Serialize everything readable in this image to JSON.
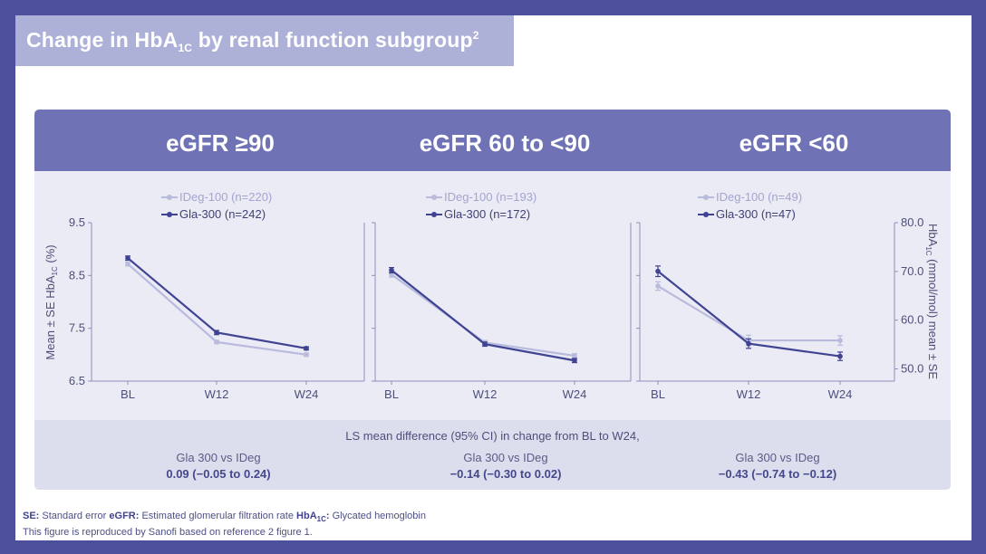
{
  "title": {
    "main_before": "Change in HbA",
    "sub": "1C",
    "main_after": " by renal function subgroup",
    "sup": "2"
  },
  "panels": [
    {
      "header": "eGFR ≥90",
      "legend": [
        "IDeg-100 (n=220)",
        "Gla-300 (n=242)"
      ],
      "diff_label": "Gla 300 vs IDeg",
      "diff_value": "0.09 (−0.05 to 0.24)"
    },
    {
      "header": "eGFR 60 to <90",
      "legend": [
        "IDeg-100 (n=193)",
        "Gla-300 (n=172)"
      ],
      "diff_label": "Gla 300 vs IDeg",
      "diff_value": "−0.14 (−0.30 to 0.02)"
    },
    {
      "header": "eGFR <60",
      "legend": [
        "IDeg-100 (n=49)",
        "Gla-300 (n=47)"
      ],
      "diff_label": "Gla 300 vs IDeg",
      "diff_value": "−0.43 (−0.74 to −0.12)"
    }
  ],
  "diff_title": "LS mean difference (95% CI) in change from BL to W24,",
  "axes": {
    "left_label": "Mean ± SE HbA",
    "left_label_sub": "1C",
    "left_label_after": " (%)",
    "left_ticks": [
      "9.5",
      "8.5",
      "7.5",
      "6.5"
    ],
    "right_label": "HbA",
    "right_label_sub": "1C",
    "right_label_after": " (mmol/mol) mean ± SE",
    "right_ticks": [
      "80.0",
      "70.0",
      "60.0",
      "50.0"
    ],
    "x_ticks": [
      "BL",
      "W12",
      "W24"
    ]
  },
  "colors": {
    "ideg": "#b9bbdc",
    "gla": "#3f4392",
    "text": "#4d4f7a"
  },
  "chart_data": {
    "type": "line",
    "categories": [
      "BL",
      "W12",
      "W24"
    ],
    "ylim": [
      6.5,
      9.5
    ],
    "ylim_right": [
      47.5,
      80.0
    ],
    "ylabel": "Mean ± SE HbA1C (%)",
    "ylabel_right": "HbA1C (mmol/mol) mean ± SE",
    "subplots": [
      {
        "title": "eGFR ≥90",
        "series": [
          {
            "name": "IDeg-100 (n=220)",
            "values": [
              8.72,
              7.24,
              7.0
            ],
            "se": [
              0.04,
              0.03,
              0.03
            ]
          },
          {
            "name": "Gla-300 (n=242)",
            "values": [
              8.83,
              7.42,
              7.12
            ],
            "se": [
              0.04,
              0.04,
              0.03
            ]
          }
        ]
      },
      {
        "title": "eGFR 60 to <90",
        "series": [
          {
            "name": "IDeg-100 (n=193)",
            "values": [
              8.52,
              7.23,
              6.98
            ],
            "se": [
              0.05,
              0.04,
              0.04
            ]
          },
          {
            "name": "Gla-300 (n=172)",
            "values": [
              8.6,
              7.2,
              6.89
            ],
            "se": [
              0.05,
              0.04,
              0.04
            ]
          }
        ]
      },
      {
        "title": "eGFR <60",
        "series": [
          {
            "name": "IDeg-100 (n=49)",
            "values": [
              8.3,
              7.27,
              7.27
            ],
            "se": [
              0.08,
              0.1,
              0.09
            ]
          },
          {
            "name": "Gla-300 (n=47)",
            "values": [
              8.58,
              7.21,
              6.97
            ],
            "se": [
              0.1,
              0.09,
              0.08
            ]
          }
        ]
      }
    ]
  },
  "footer": {
    "se_abbr": "SE:",
    "se_text": " Standard error ",
    "egfr_abbr": "eGFR:",
    "egfr_text": " Estimated glomerular filtration rate ",
    "hba_abbr": "HbA",
    "hba_sub": "1C",
    "hba_colon": ":",
    "hba_text": " Glycated hemoglobin",
    "line2": "This figure is reproduced by Sanofi based on reference 2 figure 1."
  }
}
